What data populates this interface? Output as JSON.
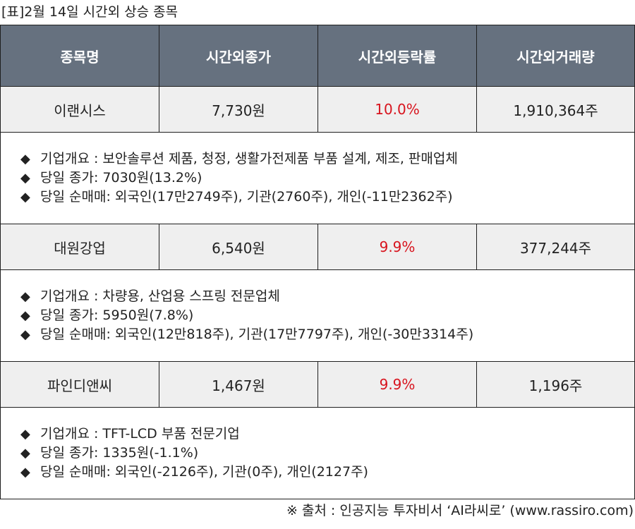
{
  "title": "[표]2월 14일 시간외 상승 종목",
  "table": {
    "headers": [
      "종목명",
      "시간외종가",
      "시간외등락률",
      "시간외거래량"
    ],
    "rows": [
      {
        "name": "이랜시스",
        "close": "7,730원",
        "rate": "10.0%",
        "volume": "1,910,364주",
        "details": [
          "기업개요 : 보안솔루션 제품, 청정, 생활가전제품 부품 설계, 제조, 판매업체",
          "당일 종가: 7030원(13.2%)",
          "당일 순매매: 외국인(17만2749주), 기관(2760주), 개인(-11만2362주)"
        ]
      },
      {
        "name": "대원강업",
        "close": "6,540원",
        "rate": "9.9%",
        "volume": "377,244주",
        "details": [
          "기업개요 : 차량용, 산업용 스프링 전문업체",
          "당일 종가: 5950원(7.8%)",
          "당일 순매매: 외국인(12만818주), 기관(17만7797주), 개인(-30만3314주)"
        ]
      },
      {
        "name": "파인디앤씨",
        "close": "1,467원",
        "rate": "9.9%",
        "volume": "1,196주",
        "details": [
          "기업개요 : TFT-LCD 부품 전문기업",
          "당일 종가: 1335원(-1.1%)",
          "당일 순매매: 외국인(-2126주), 기관(0주), 개인(2127주)"
        ]
      }
    ]
  },
  "bullet": "◆",
  "source": "※ 출처 : 인공지능 투자비서 ‘AI라씨로’ (www.rassiro.com)",
  "colors": {
    "header_bg": "#66717f",
    "header_text": "#ffffff",
    "stock_row_bg": "#efefef",
    "rate_text": "#d8141e",
    "border": "#1f1f1f"
  }
}
